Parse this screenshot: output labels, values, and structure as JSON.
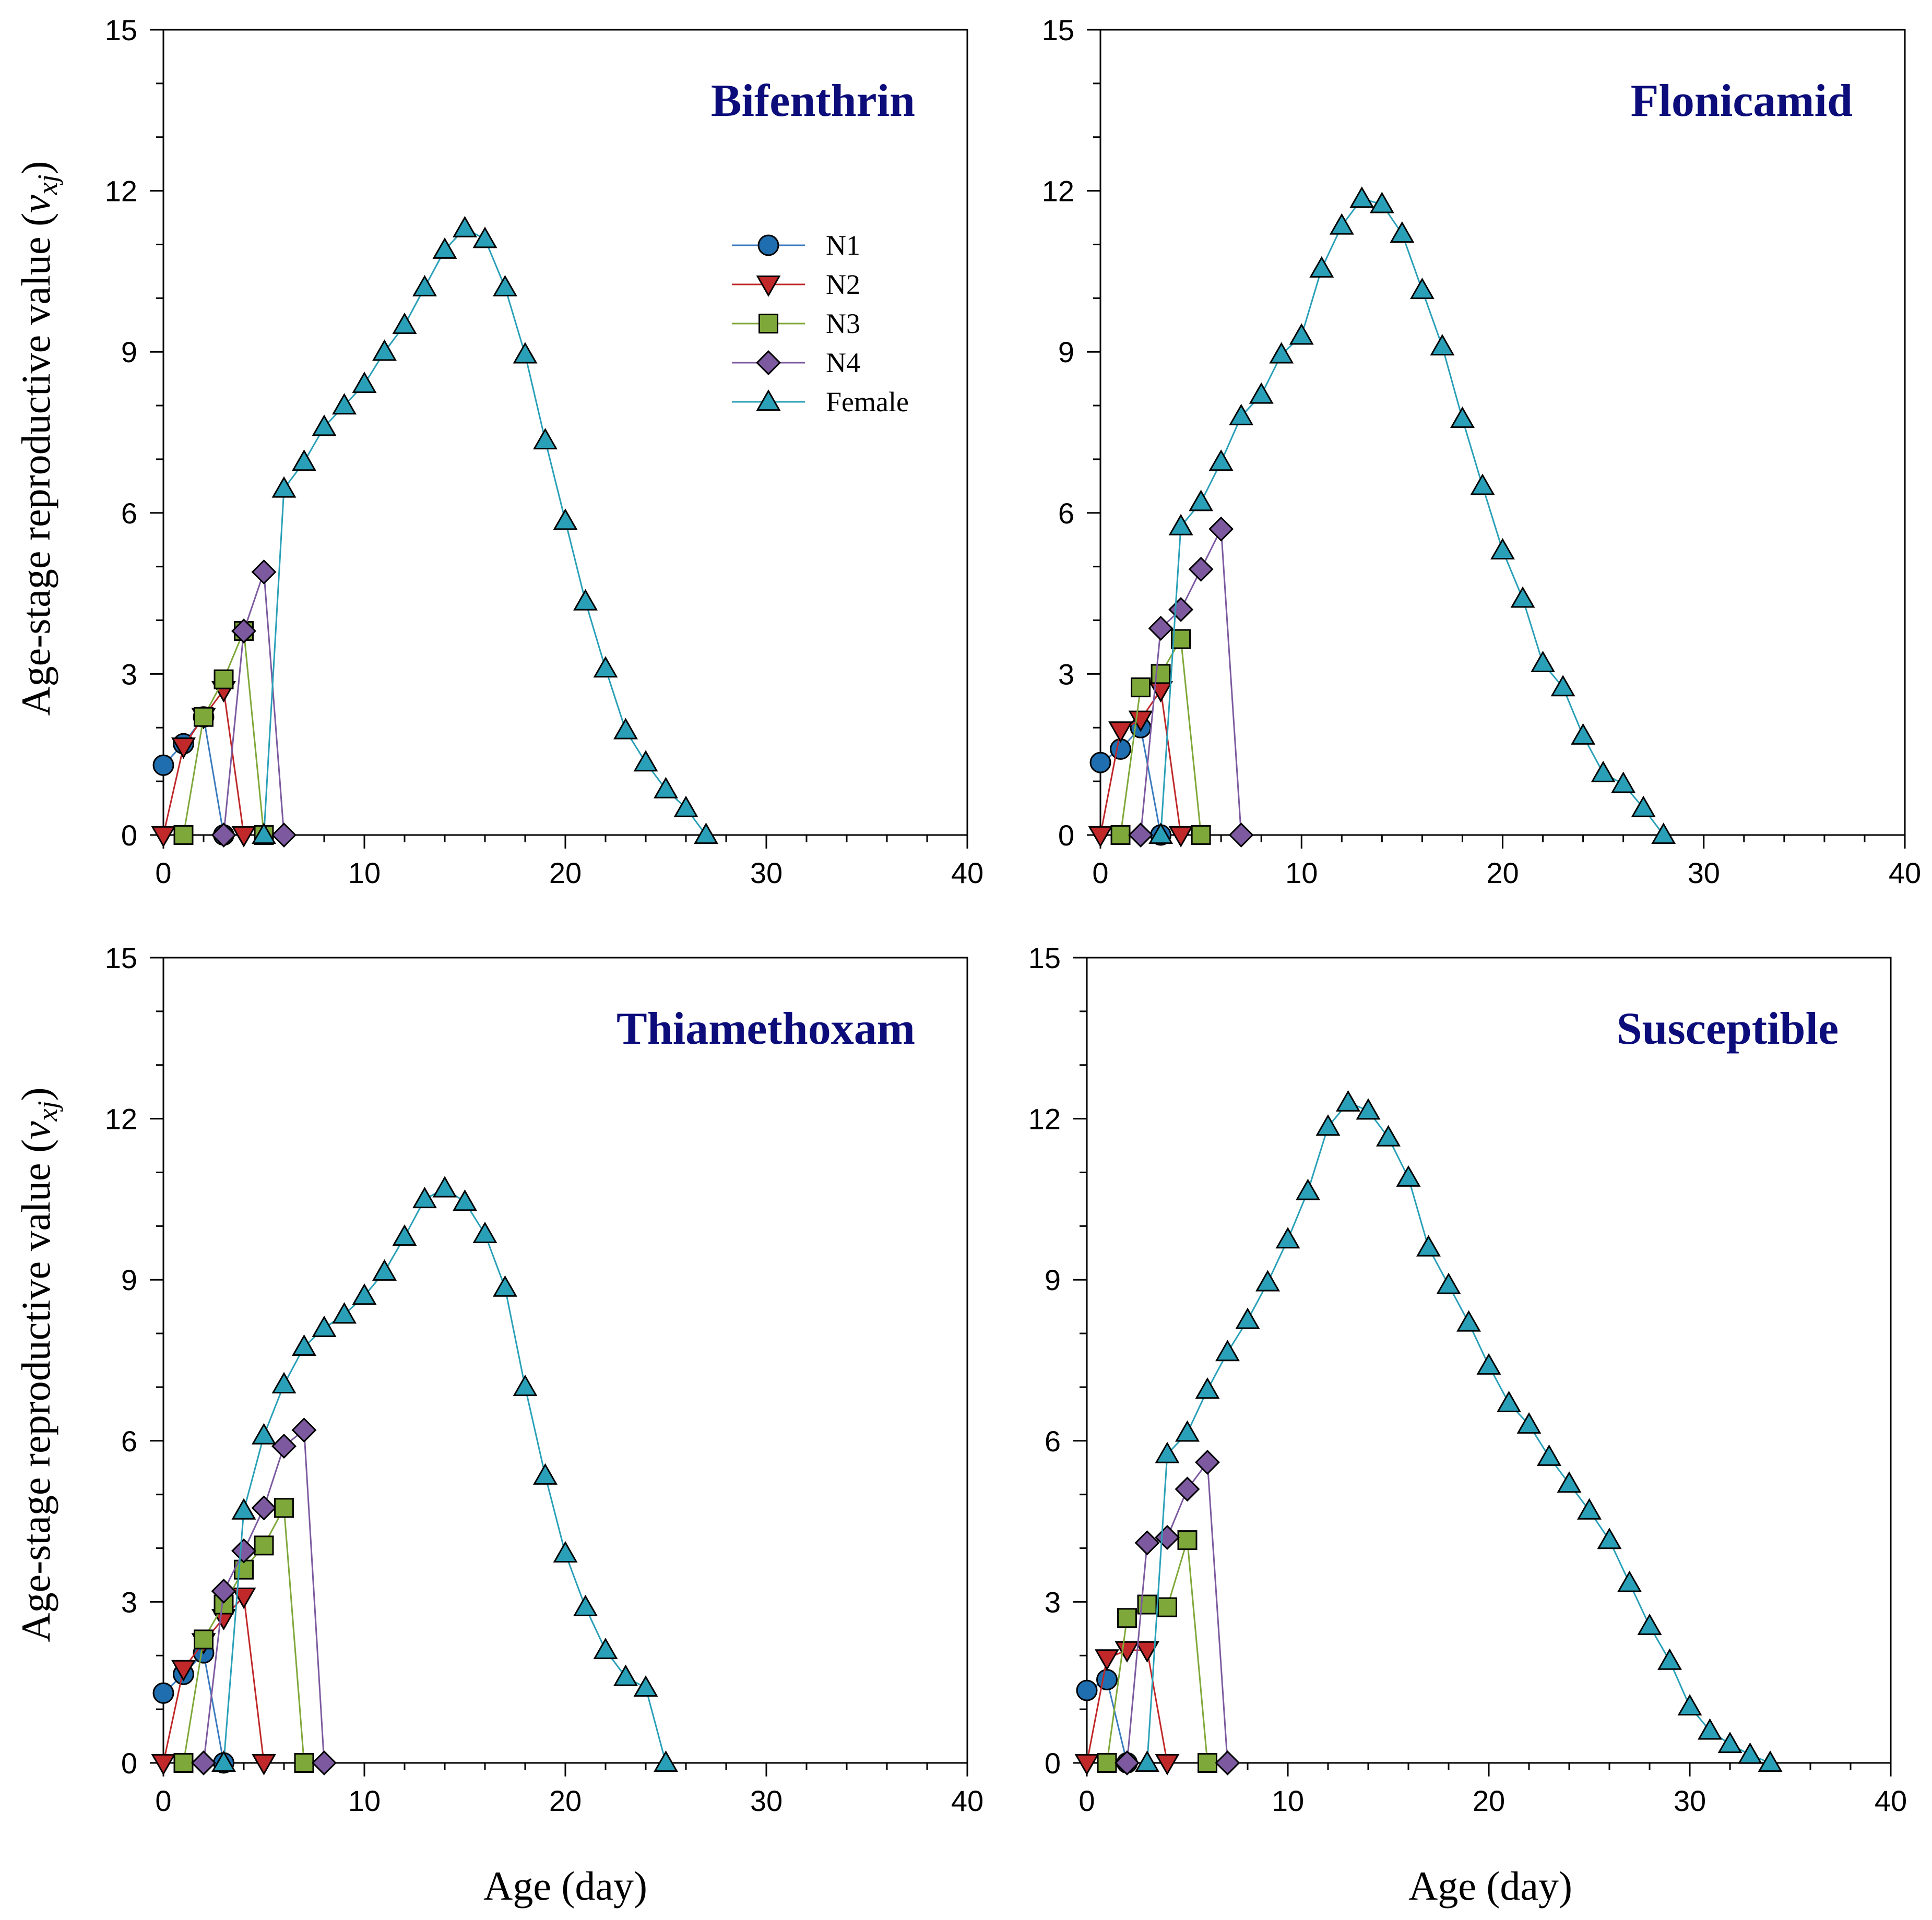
{
  "chart_data": {
    "type": "line",
    "ylabel_prefix": "Age-stage reproductive value (",
    "ylabel_symbol": "v",
    "ylabel_subscript": "xj",
    "ylabel_suffix": ")",
    "xlabel": "Age (day)",
    "xlim": [
      0,
      40
    ],
    "ylim": [
      0,
      15
    ],
    "xticks": [
      "0",
      "10",
      "20",
      "30",
      "40"
    ],
    "yticks": [
      "0",
      "3",
      "6",
      "9",
      "12",
      "15"
    ],
    "legend": {
      "placement": "top-center of first panel",
      "entries": [
        {
          "name": "N1",
          "marker": "circle",
          "color": "#1f6fb0",
          "line": "#3a7bbf"
        },
        {
          "name": "N2",
          "marker": "triangle-down",
          "color": "#c0282a",
          "line": "#c0282a"
        },
        {
          "name": "N3",
          "marker": "square",
          "color": "#7fa83a",
          "line": "#7fa83a"
        },
        {
          "name": "N4",
          "marker": "diamond",
          "color": "#7d5aa0",
          "line": "#7d5aa0"
        },
        {
          "name": "Female",
          "marker": "triangle-up",
          "color": "#2aa0b8",
          "line": "#2aa0b8"
        }
      ]
    },
    "panels": [
      {
        "title": "Bifenthrin",
        "show_legend": true,
        "series": [
          {
            "name": "N1",
            "points": [
              [
                0,
                1.3
              ],
              [
                1,
                1.7
              ],
              [
                2,
                2.2
              ],
              [
                3,
                0
              ]
            ]
          },
          {
            "name": "N2",
            "points": [
              [
                0,
                0
              ],
              [
                1,
                1.65
              ],
              [
                2,
                2.2
              ],
              [
                3,
                2.7
              ],
              [
                4,
                0
              ]
            ]
          },
          {
            "name": "N3",
            "points": [
              [
                1,
                0
              ],
              [
                2,
                2.2
              ],
              [
                3,
                2.9
              ],
              [
                4,
                3.8
              ],
              [
                5,
                0
              ]
            ]
          },
          {
            "name": "N4",
            "points": [
              [
                3,
                0
              ],
              [
                4,
                3.8
              ],
              [
                5,
                4.9
              ],
              [
                6,
                0
              ]
            ]
          },
          {
            "name": "Female",
            "points": [
              [
                5,
                0
              ],
              [
                6,
                6.45
              ],
              [
                7,
                6.95
              ],
              [
                8,
                7.6
              ],
              [
                9,
                8.0
              ],
              [
                10,
                8.4
              ],
              [
                11,
                9.0
              ],
              [
                12,
                9.5
              ],
              [
                13,
                10.2
              ],
              [
                14,
                10.9
              ],
              [
                15,
                11.3
              ],
              [
                16,
                11.1
              ],
              [
                17,
                10.2
              ],
              [
                18,
                8.95
              ],
              [
                19,
                7.35
              ],
              [
                20,
                5.85
              ],
              [
                21,
                4.35
              ],
              [
                22,
                3.1
              ],
              [
                23,
                1.95
              ],
              [
                24,
                1.35
              ],
              [
                25,
                0.85
              ],
              [
                26,
                0.5
              ],
              [
                27,
                0
              ]
            ]
          }
        ]
      },
      {
        "title": "Flonicamid",
        "show_legend": false,
        "series": [
          {
            "name": "N1",
            "points": [
              [
                0,
                1.35
              ],
              [
                1,
                1.6
              ],
              [
                2,
                2.0
              ],
              [
                3,
                0
              ]
            ]
          },
          {
            "name": "N2",
            "points": [
              [
                0,
                0
              ],
              [
                1,
                1.95
              ],
              [
                2,
                2.15
              ],
              [
                3,
                2.7
              ],
              [
                4,
                0
              ]
            ]
          },
          {
            "name": "N3",
            "points": [
              [
                1,
                0
              ],
              [
                2,
                2.75
              ],
              [
                3,
                3.0
              ],
              [
                4,
                3.65
              ],
              [
                5,
                0
              ]
            ]
          },
          {
            "name": "N4",
            "points": [
              [
                2,
                0
              ],
              [
                3,
                3.85
              ],
              [
                4,
                4.2
              ],
              [
                5,
                4.95
              ],
              [
                6,
                5.7
              ],
              [
                7,
                0
              ]
            ]
          },
          {
            "name": "Female",
            "points": [
              [
                3,
                0
              ],
              [
                4,
                5.75
              ],
              [
                5,
                6.2
              ],
              [
                6,
                6.95
              ],
              [
                7,
                7.8
              ],
              [
                8,
                8.2
              ],
              [
                9,
                8.95
              ],
              [
                10,
                9.3
              ],
              [
                11,
                10.55
              ],
              [
                12,
                11.35
              ],
              [
                13,
                11.85
              ],
              [
                14,
                11.75
              ],
              [
                15,
                11.2
              ],
              [
                16,
                10.15
              ],
              [
                17,
                9.1
              ],
              [
                18,
                7.75
              ],
              [
                19,
                6.5
              ],
              [
                20,
                5.3
              ],
              [
                21,
                4.4
              ],
              [
                22,
                3.2
              ],
              [
                23,
                2.75
              ],
              [
                24,
                1.85
              ],
              [
                25,
                1.15
              ],
              [
                26,
                0.95
              ],
              [
                27,
                0.5
              ],
              [
                28,
                0
              ]
            ]
          }
        ]
      },
      {
        "title": "Thiamethoxam",
        "show_legend": false,
        "series": [
          {
            "name": "N1",
            "points": [
              [
                0,
                1.3
              ],
              [
                1,
                1.65
              ],
              [
                2,
                2.05
              ],
              [
                3,
                0
              ]
            ]
          },
          {
            "name": "N2",
            "points": [
              [
                0,
                0
              ],
              [
                1,
                1.75
              ],
              [
                2,
                2.25
              ],
              [
                3,
                2.7
              ],
              [
                4,
                3.1
              ],
              [
                5,
                0
              ]
            ]
          },
          {
            "name": "N3",
            "points": [
              [
                1,
                0
              ],
              [
                2,
                2.3
              ],
              [
                3,
                2.95
              ],
              [
                4,
                3.6
              ],
              [
                5,
                4.05
              ],
              [
                6,
                4.75
              ],
              [
                7,
                0
              ]
            ]
          },
          {
            "name": "N4",
            "points": [
              [
                2,
                0
              ],
              [
                3,
                3.2
              ],
              [
                4,
                3.95
              ],
              [
                5,
                4.75
              ],
              [
                6,
                5.9
              ],
              [
                7,
                6.2
              ],
              [
                8,
                0
              ]
            ]
          },
          {
            "name": "Female",
            "points": [
              [
                3,
                0
              ],
              [
                4,
                4.7
              ],
              [
                5,
                6.1
              ],
              [
                6,
                7.05
              ],
              [
                7,
                7.75
              ],
              [
                8,
                8.1
              ],
              [
                9,
                8.35
              ],
              [
                10,
                8.7
              ],
              [
                11,
                9.15
              ],
              [
                12,
                9.8
              ],
              [
                13,
                10.5
              ],
              [
                14,
                10.7
              ],
              [
                15,
                10.45
              ],
              [
                16,
                9.85
              ],
              [
                17,
                8.85
              ],
              [
                18,
                7.0
              ],
              [
                19,
                5.35
              ],
              [
                20,
                3.9
              ],
              [
                21,
                2.9
              ],
              [
                22,
                2.1
              ],
              [
                23,
                1.6
              ],
              [
                24,
                1.4
              ],
              [
                25,
                0
              ]
            ]
          }
        ]
      },
      {
        "title": "Susceptible",
        "show_legend": false,
        "series": [
          {
            "name": "N1",
            "points": [
              [
                0,
                1.35
              ],
              [
                1,
                1.55
              ],
              [
                2,
                0
              ]
            ]
          },
          {
            "name": "N2",
            "points": [
              [
                0,
                0
              ],
              [
                1,
                1.95
              ],
              [
                2,
                2.1
              ],
              [
                3,
                2.1
              ],
              [
                4,
                0
              ]
            ]
          },
          {
            "name": "N3",
            "points": [
              [
                1,
                0
              ],
              [
                2,
                2.7
              ],
              [
                3,
                2.95
              ],
              [
                4,
                2.9
              ],
              [
                5,
                4.15
              ],
              [
                6,
                0
              ]
            ]
          },
          {
            "name": "N4",
            "points": [
              [
                2,
                0
              ],
              [
                3,
                4.1
              ],
              [
                4,
                4.2
              ],
              [
                5,
                5.1
              ],
              [
                6,
                5.6
              ],
              [
                7,
                0
              ]
            ]
          },
          {
            "name": "Female",
            "points": [
              [
                3,
                0
              ],
              [
                4,
                5.75
              ],
              [
                5,
                6.15
              ],
              [
                6,
                6.95
              ],
              [
                7,
                7.65
              ],
              [
                8,
                8.25
              ],
              [
                9,
                8.95
              ],
              [
                10,
                9.75
              ],
              [
                11,
                10.65
              ],
              [
                12,
                11.85
              ],
              [
                13,
                12.3
              ],
              [
                14,
                12.15
              ],
              [
                15,
                11.65
              ],
              [
                16,
                10.9
              ],
              [
                17,
                9.6
              ],
              [
                18,
                8.9
              ],
              [
                19,
                8.2
              ],
              [
                20,
                7.4
              ],
              [
                21,
                6.7
              ],
              [
                22,
                6.3
              ],
              [
                23,
                5.7
              ],
              [
                24,
                5.2
              ],
              [
                25,
                4.7
              ],
              [
                26,
                4.15
              ],
              [
                27,
                3.35
              ],
              [
                28,
                2.55
              ],
              [
                29,
                1.9
              ],
              [
                30,
                1.05
              ],
              [
                31,
                0.6
              ],
              [
                32,
                0.35
              ],
              [
                33,
                0.15
              ],
              [
                34,
                0
              ]
            ]
          }
        ]
      }
    ]
  }
}
